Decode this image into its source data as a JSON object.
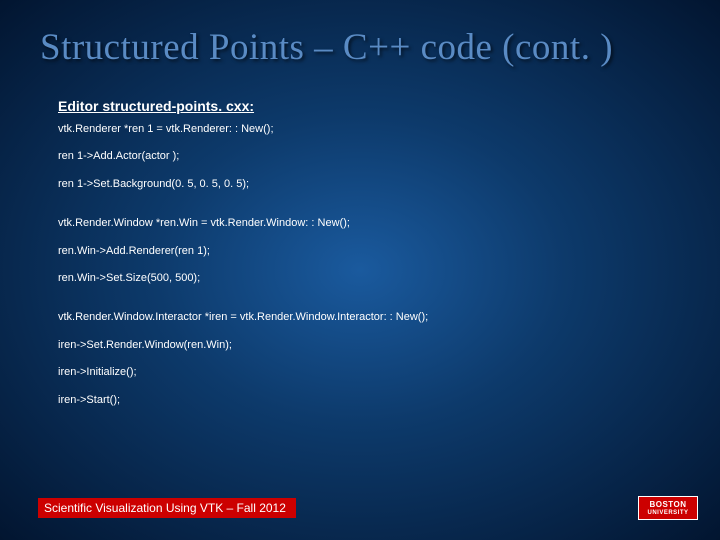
{
  "slide": {
    "title": "Structured Points – C++ code (cont. )",
    "subtitle": "Editor structured-points. cxx:",
    "code_groups": [
      [
        "vtk.Renderer *ren 1 = vtk.Renderer: : New();",
        "ren 1->Add.Actor(actor );",
        "ren 1->Set.Background(0. 5, 0. 5, 0. 5);"
      ],
      [
        "vtk.Render.Window *ren.Win = vtk.Render.Window: : New();",
        "ren.Win->Add.Renderer(ren 1);",
        "ren.Win->Set.Size(500, 500);"
      ],
      [
        "vtk.Render.Window.Interactor *iren = vtk.Render.Window.Interactor: : New();",
        "iren->Set.Render.Window(ren.Win);",
        "iren->Initialize();",
        "iren->Start();"
      ]
    ],
    "footer": "Scientific Visualization Using VTK – Fall 2012",
    "logo": {
      "line1": "BOSTON",
      "line2": "UNIVERSITY"
    }
  },
  "colors": {
    "title_color": "#5a8bc4",
    "text_color": "#ffffff",
    "footer_bg": "#cc0000",
    "logo_bg": "#cc0000",
    "bg_center": "#1a5a9e",
    "bg_edge": "#021530"
  }
}
